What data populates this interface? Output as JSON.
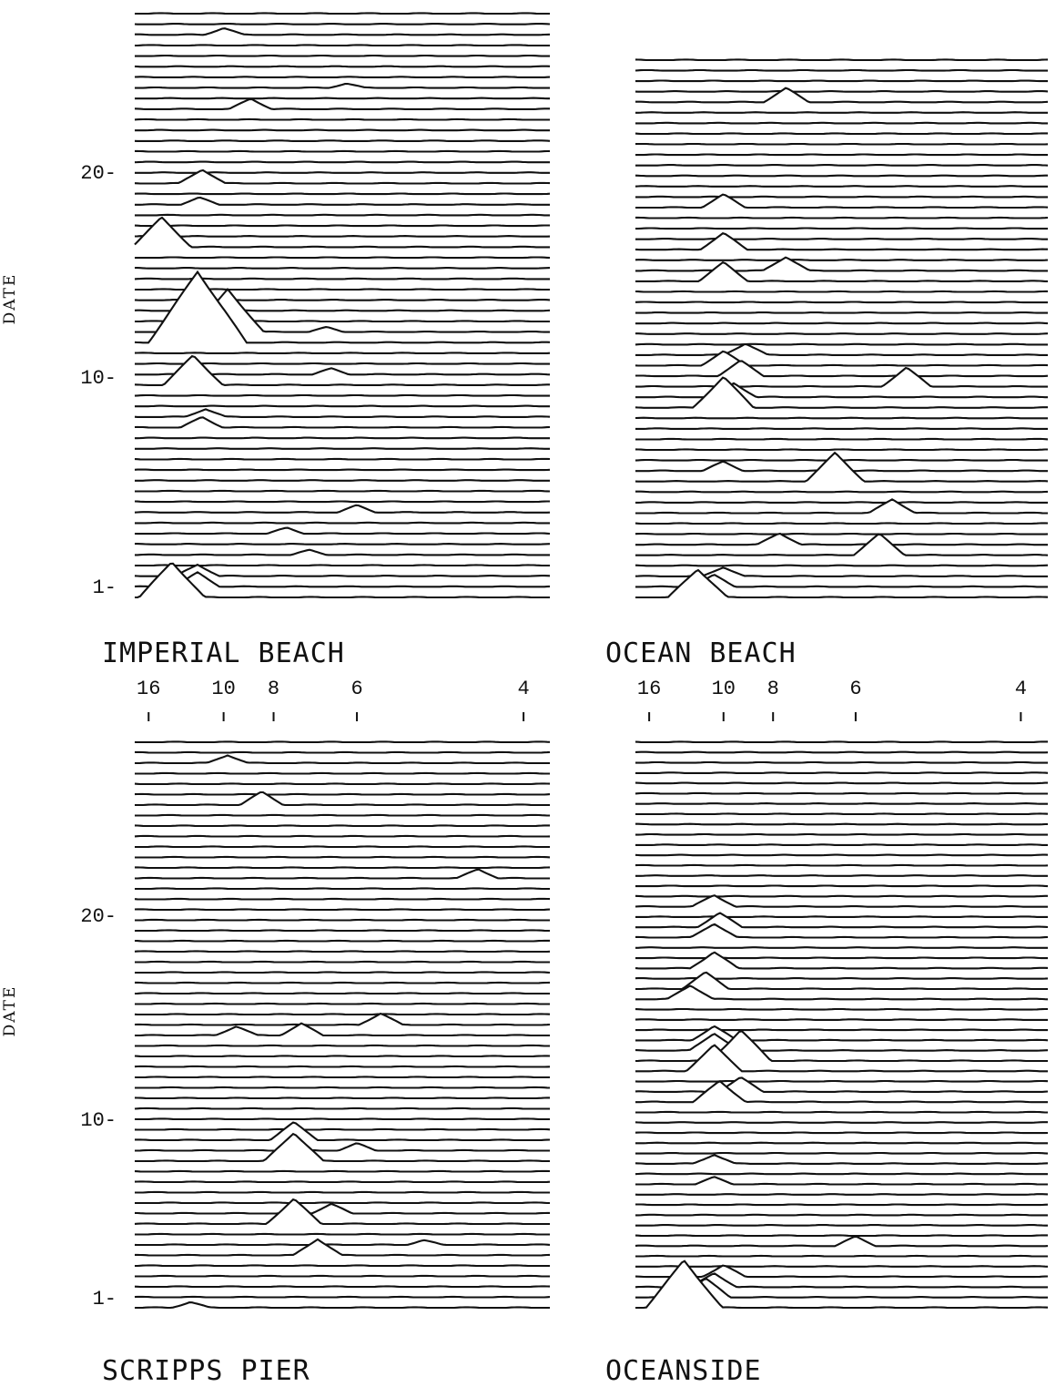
{
  "chart_data": [
    {
      "type": "stacked-spectra",
      "title": "IMPERIAL BEACH",
      "ylabel": "DATE",
      "yticks": [
        "1-",
        "10-",
        "20-"
      ],
      "ytick_values": [
        1,
        10,
        20
      ],
      "xticks": [],
      "traces": 56,
      "peaks": [
        {
          "trace": 1,
          "period": 13.5,
          "amp": 3.0
        },
        {
          "trace": 2,
          "period": 11.5,
          "amp": 1.2
        },
        {
          "trace": 3,
          "period": 11.5,
          "amp": 1.0
        },
        {
          "trace": 5,
          "period": 7.0,
          "amp": 0.4
        },
        {
          "trace": 7,
          "period": 7.6,
          "amp": 0.5
        },
        {
          "trace": 9,
          "period": 6.0,
          "amp": 0.6
        },
        {
          "trace": 17,
          "period": 11.2,
          "amp": 0.9
        },
        {
          "trace": 18,
          "period": 11.0,
          "amp": 0.7
        },
        {
          "trace": 21,
          "period": 11.8,
          "amp": 2.5
        },
        {
          "trace": 22,
          "period": 6.5,
          "amp": 0.5
        },
        {
          "trace": 25,
          "period": 11.5,
          "amp": 6.0
        },
        {
          "trace": 26,
          "period": 9.8,
          "amp": 3.6
        },
        {
          "trace": 26,
          "period": 6.6,
          "amp": 0.4
        },
        {
          "trace": 34,
          "period": 14.5,
          "amp": 2.5
        },
        {
          "trace": 38,
          "period": 11.4,
          "amp": 0.6
        },
        {
          "trace": 40,
          "period": 11.2,
          "amp": 1.2
        },
        {
          "trace": 47,
          "period": 8.8,
          "amp": 0.9
        },
        {
          "trace": 49,
          "period": 6.2,
          "amp": 0.4
        },
        {
          "trace": 54,
          "period": 10.0,
          "amp": 0.6
        }
      ]
    },
    {
      "type": "stacked-spectra",
      "title": "OCEAN BEACH",
      "ylabel": "",
      "yticks": [],
      "ytick_values": [],
      "xticks": [],
      "traces": 52,
      "peaks": [
        {
          "trace": 1,
          "period": 11.5,
          "amp": 2.4
        },
        {
          "trace": 2,
          "period": 10.5,
          "amp": 1.0
        },
        {
          "trace": 3,
          "period": 10.0,
          "amp": 0.8
        },
        {
          "trace": 5,
          "period": 5.6,
          "amp": 1.8
        },
        {
          "trace": 6,
          "period": 7.8,
          "amp": 1.0
        },
        {
          "trace": 9,
          "period": 5.4,
          "amp": 1.2
        },
        {
          "trace": 12,
          "period": 6.4,
          "amp": 2.4
        },
        {
          "trace": 13,
          "period": 10.0,
          "amp": 0.8
        },
        {
          "trace": 19,
          "period": 10.0,
          "amp": 2.6
        },
        {
          "trace": 20,
          "period": 9.5,
          "amp": 1.2
        },
        {
          "trace": 21,
          "period": 5.2,
          "amp": 1.6
        },
        {
          "trace": 22,
          "period": 9.2,
          "amp": 1.3
        },
        {
          "trace": 23,
          "period": 10.0,
          "amp": 1.2
        },
        {
          "trace": 24,
          "period": 9.0,
          "amp": 1.0
        },
        {
          "trace": 31,
          "period": 10.0,
          "amp": 1.6
        },
        {
          "trace": 32,
          "period": 7.6,
          "amp": 1.2
        },
        {
          "trace": 34,
          "period": 10.0,
          "amp": 1.4
        },
        {
          "trace": 38,
          "period": 10.0,
          "amp": 1.1
        },
        {
          "trace": 48,
          "period": 7.6,
          "amp": 1.2
        }
      ]
    },
    {
      "type": "stacked-spectra",
      "title": "SCRIPPS PIER",
      "ylabel": "DATE",
      "yticks": [
        "1-",
        "10-",
        "20-"
      ],
      "ytick_values": [
        1,
        10,
        20
      ],
      "xlabel_position": "top",
      "xticks": [
        "16",
        "10",
        "8",
        "6",
        "4"
      ],
      "xtick_values": [
        16,
        10,
        8,
        6,
        4
      ],
      "traces": 55,
      "peaks": [
        {
          "trace": 1,
          "period": 12.0,
          "amp": 0.5
        },
        {
          "trace": 6,
          "period": 6.8,
          "amp": 1.4
        },
        {
          "trace": 7,
          "period": 5.0,
          "amp": 0.4
        },
        {
          "trace": 9,
          "period": 7.4,
          "amp": 2.1
        },
        {
          "trace": 10,
          "period": 6.5,
          "amp": 0.8
        },
        {
          "trace": 15,
          "period": 7.4,
          "amp": 2.4
        },
        {
          "trace": 16,
          "period": 6.0,
          "amp": 0.6
        },
        {
          "trace": 17,
          "period": 7.4,
          "amp": 1.5
        },
        {
          "trace": 27,
          "period": 7.2,
          "amp": 1.0
        },
        {
          "trace": 27,
          "period": 9.4,
          "amp": 0.8
        },
        {
          "trace": 28,
          "period": 5.6,
          "amp": 1.0
        },
        {
          "trace": 42,
          "period": 4.4,
          "amp": 0.8
        },
        {
          "trace": 49,
          "period": 8.4,
          "amp": 1.1
        },
        {
          "trace": 53,
          "period": 9.8,
          "amp": 0.7
        }
      ]
    },
    {
      "type": "stacked-spectra",
      "title": "OCEANSIDE",
      "ylabel": "",
      "yticks": [],
      "ytick_values": [],
      "xlabel_position": "top",
      "xticks": [
        "16",
        "10",
        "8",
        "6",
        "4"
      ],
      "xtick_values": [
        16,
        10,
        8,
        6,
        4
      ],
      "traces": 56,
      "peaks": [
        {
          "trace": 1,
          "period": 12.5,
          "amp": 4.0
        },
        {
          "trace": 2,
          "period": 11.0,
          "amp": 1.6
        },
        {
          "trace": 3,
          "period": 10.5,
          "amp": 1.2
        },
        {
          "trace": 4,
          "period": 10.0,
          "amp": 1.0
        },
        {
          "trace": 7,
          "period": 6.0,
          "amp": 0.8
        },
        {
          "trace": 13,
          "period": 10.5,
          "amp": 0.6
        },
        {
          "trace": 15,
          "period": 10.5,
          "amp": 0.8
        },
        {
          "trace": 21,
          "period": 10.2,
          "amp": 1.8
        },
        {
          "trace": 22,
          "period": 9.2,
          "amp": 1.2
        },
        {
          "trace": 24,
          "period": 10.5,
          "amp": 2.2
        },
        {
          "trace": 25,
          "period": 9.2,
          "amp": 2.6
        },
        {
          "trace": 26,
          "period": 10.5,
          "amp": 1.5
        },
        {
          "trace": 27,
          "period": 10.5,
          "amp": 1.2
        },
        {
          "trace": 31,
          "period": 12.0,
          "amp": 1.2
        },
        {
          "trace": 32,
          "period": 11.0,
          "amp": 1.4
        },
        {
          "trace": 34,
          "period": 10.5,
          "amp": 1.4
        },
        {
          "trace": 37,
          "period": 10.5,
          "amp": 1.2
        },
        {
          "trace": 38,
          "period": 10.2,
          "amp": 1.2
        },
        {
          "trace": 40,
          "period": 10.5,
          "amp": 1.0
        }
      ]
    }
  ]
}
